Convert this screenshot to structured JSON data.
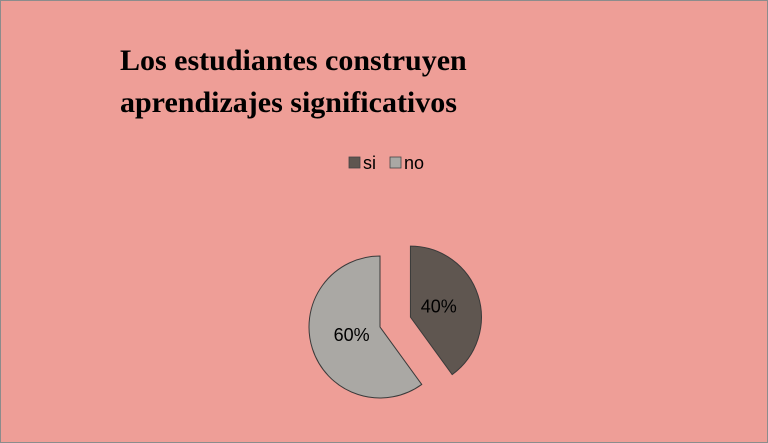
{
  "chart_data": {
    "type": "pie",
    "title": "Los estudiantes construyen aprendizajes significativos",
    "categories": [
      "si",
      "no"
    ],
    "values": [
      40,
      60
    ],
    "value_labels": [
      "40%",
      "60%"
    ],
    "colors": [
      "#5f5650",
      "#aaa8a4"
    ],
    "legend": "top"
  }
}
